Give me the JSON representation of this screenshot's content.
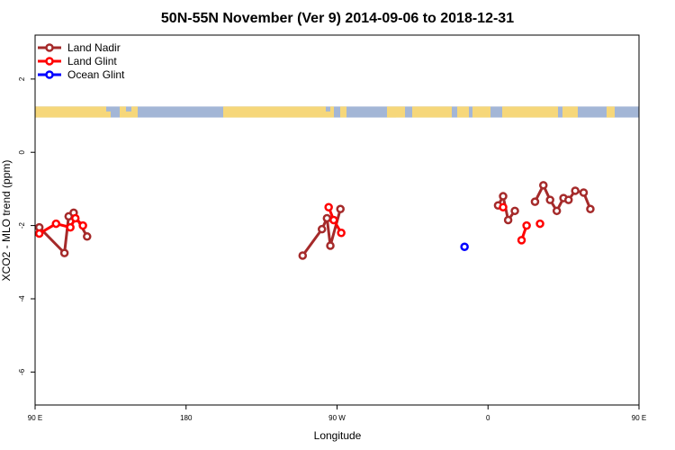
{
  "chart_data": {
    "type": "scatter",
    "title": "50N-55N November (Ver 9)   2014-09-06 to 2018-12-31",
    "xlabel": "Longitude",
    "ylabel": "XCO2 - MLO trend (ppm)",
    "xlim": [
      90,
      450
    ],
    "ylim": [
      -6.9,
      3.2
    ],
    "x_ticks": [
      {
        "value": 90,
        "label": "90 E"
      },
      {
        "value": 180,
        "label": "180"
      },
      {
        "value": 270,
        "label": "90 W"
      },
      {
        "value": 360,
        "label": "0"
      },
      {
        "value": 450,
        "label": "90 E"
      },
      {
        "value": 540,
        "label": "180"
      }
    ],
    "y_ticks": [
      {
        "value": 2,
        "label": "2"
      },
      {
        "value": 0,
        "label": "0"
      },
      {
        "value": -2,
        "label": "-2"
      },
      {
        "value": -4,
        "label": "-4"
      },
      {
        "value": -6,
        "label": "-6"
      }
    ],
    "legend": {
      "position": "top-left"
    },
    "land_band": {
      "y_range": [
        0.95,
        1.25
      ],
      "ocean_color": "#a3b6d6",
      "land_color": "#f6d77a"
    },
    "series": [
      {
        "name": "Land Nadir",
        "color": "#a52a2a",
        "connected": true,
        "segments": [
          [
            [
              92.5,
              -2.05
            ],
            [
              107.5,
              -2.75
            ],
            [
              110,
              -1.75
            ],
            [
              113,
              -1.65
            ],
            [
              121,
              -2.3
            ]
          ],
          [
            [
              249.5,
              -2.82
            ],
            [
              261,
              -2.1
            ],
            [
              264,
              -1.8
            ],
            [
              266,
              -2.55
            ],
            [
              272,
              -1.55
            ]
          ],
          [
            [
              366,
              -1.45
            ],
            [
              369,
              -1.2
            ],
            [
              372,
              -1.85
            ],
            [
              376,
              -1.6
            ]
          ],
          [
            [
              388,
              -1.35
            ],
            [
              393,
              -0.9
            ],
            [
              397,
              -1.3
            ],
            [
              401,
              -1.6
            ],
            [
              405,
              -1.25
            ],
            [
              408,
              -1.3
            ],
            [
              412,
              -1.05
            ],
            [
              417,
              -1.1
            ],
            [
              421,
              -1.55
            ]
          ],
          [
            [
              452.5,
              -2.05
            ],
            [
              467.5,
              -2.75
            ],
            [
              470,
              -1.75
            ],
            [
              473,
              -1.65
            ],
            [
              481,
              -2.3
            ]
          ]
        ]
      },
      {
        "name": "Land Glint",
        "color": "#ff0000",
        "connected": true,
        "segments": [
          [
            [
              92.5,
              -2.22
            ],
            [
              102.5,
              -1.95
            ],
            [
              111,
              -2.05
            ],
            [
              114,
              -1.8
            ],
            [
              118.5,
              -2.0
            ]
          ],
          [
            [
              265,
              -1.5
            ],
            [
              268,
              -1.85
            ],
            [
              272.5,
              -2.2
            ]
          ],
          [
            [
              369,
              -1.5
            ]
          ],
          [
            [
              380,
              -2.4
            ],
            [
              383,
              -2.0
            ]
          ],
          [
            [
              391,
              -1.95
            ]
          ],
          [
            [
              452.5,
              -2.22
            ],
            [
              462.5,
              -1.95
            ],
            [
              471,
              -2.05
            ],
            [
              474,
              -1.8
            ],
            [
              478.5,
              -2.0
            ]
          ]
        ]
      },
      {
        "name": "Ocean Glint",
        "color": "#0000ff",
        "connected": false,
        "segments": [
          [
            [
              346,
              -2.58
            ]
          ]
        ]
      }
    ]
  }
}
